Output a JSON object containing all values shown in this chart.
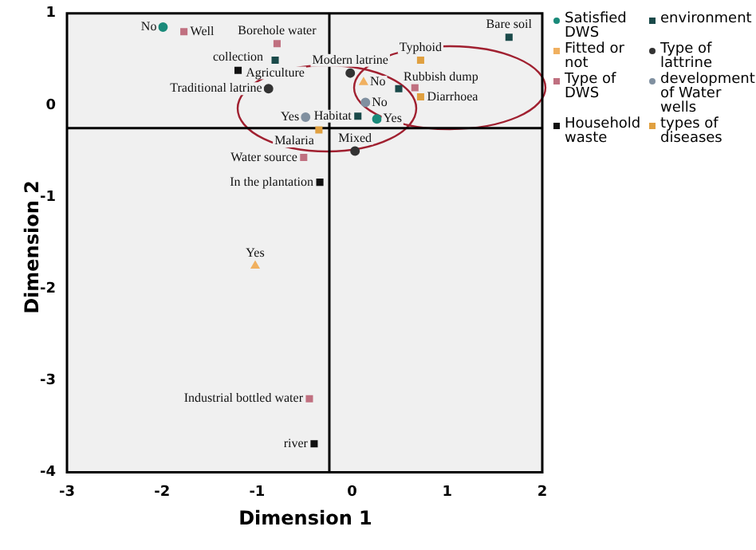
{
  "chart_data": {
    "type": "scatter",
    "xlabel": "Dimension 1",
    "ylabel": "Dimension 2",
    "xlim": [
      -3,
      2
    ],
    "xticks": [
      -3,
      -2,
      -1,
      0,
      1,
      2
    ],
    "ylim": [
      -4,
      1
    ],
    "yticks": [
      -4,
      -3,
      -2,
      -1,
      0,
      1
    ],
    "grid": false,
    "legend": "right",
    "ref_lines": [
      {
        "axis": "x",
        "value": -0.24,
        "color": "#000000"
      },
      {
        "axis": "y",
        "value": -0.25,
        "color": "#000000"
      }
    ],
    "series": [
      {
        "name": "Satisfied DWS",
        "color": "#1a8a7a",
        "marker": "circle",
        "x": [
          -1.99,
          0.26
        ],
        "values": [
          0.85,
          -0.15
        ]
      },
      {
        "name": "Fitted or not",
        "color": "#f0b060",
        "marker": "triangle",
        "x": [
          -1.02,
          0.12
        ],
        "values": [
          -1.75,
          0.25
        ]
      },
      {
        "name": "Type of DWS",
        "color": "#c07080",
        "marker": "square",
        "x": [
          -1.77,
          -0.79,
          -0.45,
          -0.51,
          0.66
        ],
        "values": [
          0.8,
          0.67,
          -3.2,
          -0.57,
          0.19
        ]
      },
      {
        "name": "Household waste",
        "color": "#111111",
        "marker": "square",
        "x": [
          -1.2,
          -0.34,
          -0.4
        ],
        "values": [
          0.38,
          -0.84,
          -3.69
        ]
      },
      {
        "name": "environment",
        "color": "#1a4a4a",
        "marker": "square",
        "x": [
          -0.81,
          0.49,
          1.65,
          0.06
        ],
        "values": [
          0.49,
          0.18,
          0.74,
          -0.12
        ]
      },
      {
        "name": "Type of lattrine",
        "color": "#333333",
        "marker": "circle",
        "x": [
          -0.02,
          -0.88,
          0.03
        ],
        "values": [
          0.35,
          0.18,
          -0.5
        ]
      },
      {
        "name": "development of Water wells",
        "color": "#8090a0",
        "marker": "circle",
        "x": [
          -0.49,
          0.14
        ],
        "values": [
          -0.13,
          0.03
        ]
      },
      {
        "name": "types of diseases",
        "color": "#e0a040",
        "marker": "square",
        "x": [
          0.72,
          0.72,
          -0.35
        ],
        "values": [
          0.49,
          0.09,
          -0.27
        ]
      }
    ],
    "annotations": [
      {
        "text": "No",
        "x": -1.99,
        "y": 0.85
      },
      {
        "text": "Yes",
        "x": 0.26,
        "y": -0.15
      },
      {
        "text": "Yes",
        "x": -1.02,
        "y": -1.75
      },
      {
        "text": "No",
        "x": 0.12,
        "y": 0.25
      },
      {
        "text": "Well",
        "x": -1.77,
        "y": 0.8
      },
      {
        "text": "Borehole water",
        "x": -0.79,
        "y": 0.67
      },
      {
        "text": "Industrial bottled water",
        "x": -0.45,
        "y": -3.2
      },
      {
        "text": "Water source",
        "x": -0.51,
        "y": -0.57
      },
      {
        "text": "collection",
        "x": -1.2,
        "y": 0.38
      },
      {
        "text": "In the plantation",
        "x": -0.34,
        "y": -0.84
      },
      {
        "text": "river",
        "x": -0.4,
        "y": -3.69
      },
      {
        "text": "Agriculture",
        "x": -0.81,
        "y": 0.49
      },
      {
        "text": "Rubbish dump",
        "x": 0.49,
        "y": 0.18
      },
      {
        "text": "Bare soil",
        "x": 1.65,
        "y": 0.74
      },
      {
        "text": "Habitat",
        "x": 0.06,
        "y": -0.12
      },
      {
        "text": "Modern latrine",
        "x": -0.02,
        "y": 0.35
      },
      {
        "text": "Traditional latrine",
        "x": -0.88,
        "y": 0.18
      },
      {
        "text": "Mixed",
        "x": 0.03,
        "y": -0.5
      },
      {
        "text": "Yes",
        "x": -0.49,
        "y": -0.13
      },
      {
        "text": "No",
        "x": 0.14,
        "y": 0.03
      },
      {
        "text": "Typhoid",
        "x": 0.72,
        "y": 0.49
      },
      {
        "text": "Diarrhoea",
        "x": 0.72,
        "y": 0.09
      },
      {
        "text": "Malaria",
        "x": -0.35,
        "y": -0.27
      }
    ]
  }
}
